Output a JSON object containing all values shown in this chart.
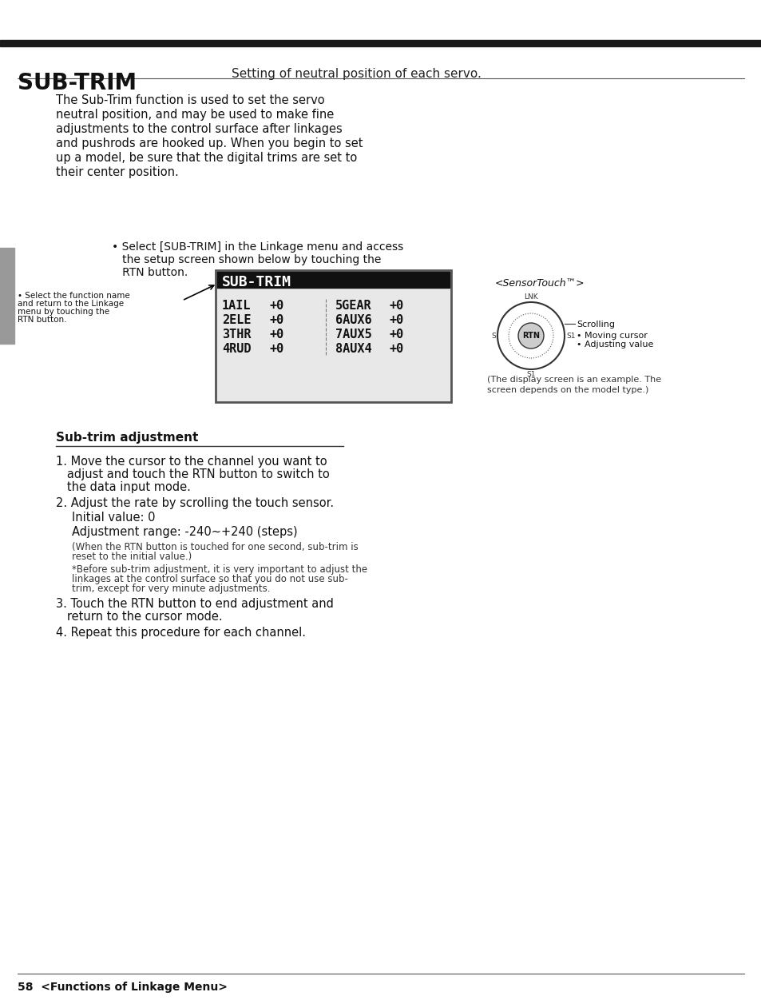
{
  "page_bg": "#ffffff",
  "top_bar_color": "#1a1a1a",
  "title": "SUB-TRIM",
  "subtitle": "Setting of neutral position of each servo.",
  "body_text": "The Sub-Trim function is used to set the servo\nneutral position, and may be used to make fine\nadjustments to the control surface after linkages\nand pushrods are hooked up. When you begin to set\nup a model, be sure that the digital trims are set to\ntheir center position.",
  "bullet1": "• Select [SUB-TRIM] in the Linkage menu and access\n   the setup screen shown below by touching the\n   RTN button.",
  "left_note": "• Select the function name\nand return to the Linkage\nmenu by touching the\nRTN button.",
  "sensor_label": "<SensorTouch™>",
  "sensor_note1": "Scrolling",
  "sensor_note2": "• Moving cursor",
  "sensor_note3": "• Adjusting value",
  "display_note": "(The display screen is an example. The\nscreen depends on the model type.)",
  "section_title": "Sub-trim adjustment",
  "step1": "1. Move the cursor to the channel you want to\n   adjust and touch the RTN button to switch to\n   the data input mode.",
  "step2": "2. Adjust the rate by scrolling the touch sensor.",
  "step2a": "   Initial value: 0",
  "step2b": "   Adjustment range: -240~+240 (steps)",
  "step2c": "   (When the RTN button is touched for one second, sub-trim is\n     reset to the initial value.)",
  "step2d": "   *Before sub-trim adjustment, it is very important to adjust the\n     linkages at the control surface so that you do not use sub-\n     trim, except for very minute adjustments.",
  "step3": "3. Touch the RTN button to end adjustment and\n   return to the cursor mode.",
  "step4": "4. Repeat this procedure for each channel.",
  "footer": "58  <Functions of Linkage Menu>",
  "lcd_title": "SUB-TRIM",
  "lcd_rows": [
    [
      "1AIL",
      "+0",
      "5GEAR",
      "+0"
    ],
    [
      "2ELE",
      "+0",
      "6AUX6",
      "+0"
    ],
    [
      "3THR",
      "+0",
      "7AUX5",
      "+0"
    ],
    [
      "4RUD",
      "+0",
      "8AUX4",
      "+0"
    ]
  ]
}
